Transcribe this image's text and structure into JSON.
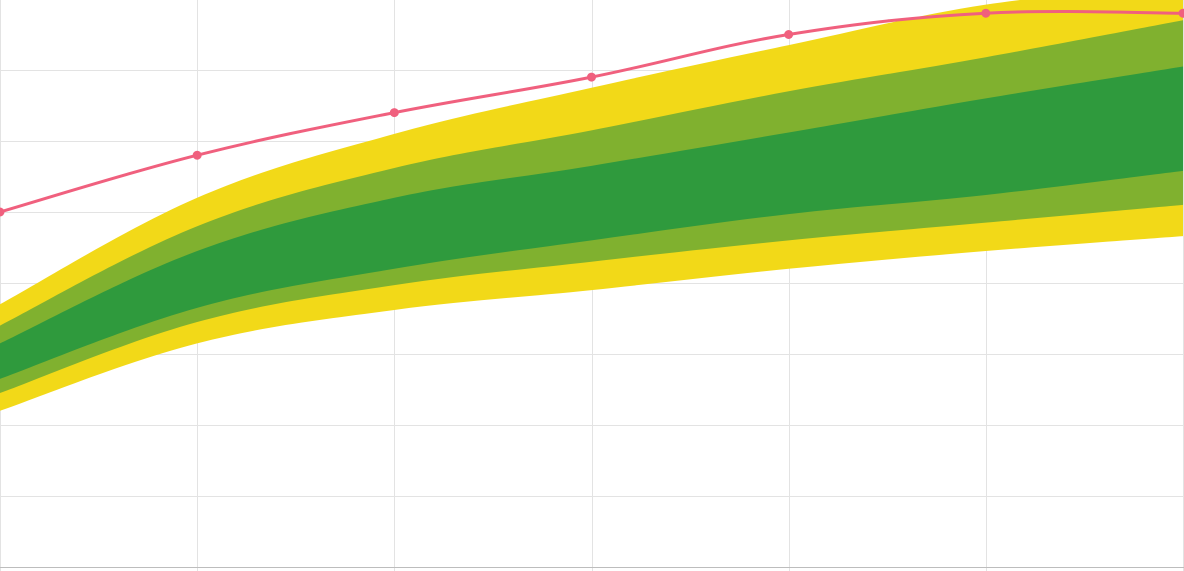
{
  "chart_data": {
    "type": "area",
    "title": "",
    "xlabel": "",
    "ylabel": "",
    "x": [
      0,
      1,
      2,
      3,
      4,
      5,
      6
    ],
    "xlim": [
      0,
      6
    ],
    "ylim": [
      0,
      8
    ],
    "grid": true,
    "legend": "none",
    "bands": [
      {
        "id": "outer",
        "color": "#f2d918",
        "upper": [
          3.7,
          5.2,
          6.1,
          6.75,
          7.35,
          7.92,
          8.2
        ],
        "lower": [
          2.2,
          3.15,
          3.62,
          3.9,
          4.2,
          4.45,
          4.66
        ]
      },
      {
        "id": "middle",
        "color": "#80b12f",
        "upper": [
          3.4,
          4.8,
          5.62,
          6.15,
          6.7,
          7.18,
          7.7
        ],
        "lower": [
          2.45,
          3.45,
          3.97,
          4.3,
          4.6,
          4.85,
          5.1
        ]
      },
      {
        "id": "inner",
        "color": "#2f9a3d",
        "upper": [
          3.15,
          4.45,
          5.2,
          5.65,
          6.12,
          6.6,
          7.05
        ],
        "lower": [
          2.65,
          3.65,
          4.2,
          4.6,
          4.97,
          5.24,
          5.58
        ]
      }
    ],
    "series": [
      {
        "color": "#f0607e",
        "values": [
          5.0,
          5.8,
          6.4,
          6.9,
          7.5,
          7.8,
          7.8
        ]
      }
    ]
  }
}
